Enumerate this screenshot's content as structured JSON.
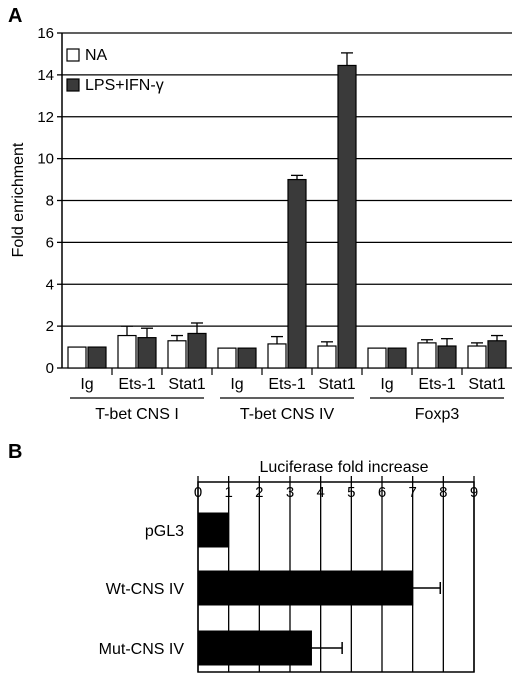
{
  "chart_data": [
    {
      "type": "bar",
      "panel_label": "A",
      "ylabel": "Fold enrichment",
      "ylim": [
        0,
        16
      ],
      "yticks": [
        0,
        2,
        4,
        6,
        8,
        10,
        12,
        14,
        16
      ],
      "grid": true,
      "legend_position": "top-left",
      "groups": [
        {
          "name": "T-bet CNS I",
          "categories": [
            "Ig",
            "Ets-1",
            "Stat1"
          ]
        },
        {
          "name": "T-bet CNS IV",
          "categories": [
            "Ig",
            "Ets-1",
            "Stat1"
          ]
        },
        {
          "name": "Foxp3",
          "categories": [
            "Ig",
            "Ets-1",
            "Stat1"
          ]
        }
      ],
      "series": [
        {
          "name": "NA",
          "color": "#ffffff",
          "values": [
            1.0,
            1.55,
            1.3,
            0.95,
            1.15,
            1.05,
            0.95,
            1.2,
            1.05
          ],
          "errors": [
            0,
            0.45,
            0.25,
            0,
            0.35,
            0.2,
            0,
            0.15,
            0.15
          ]
        },
        {
          "name": "LPS+IFN-γ",
          "color": "#3a3a3a",
          "values": [
            1.0,
            1.45,
            1.65,
            0.95,
            9.0,
            14.45,
            0.95,
            1.05,
            1.3
          ],
          "errors": [
            0,
            0.45,
            0.5,
            0,
            0.2,
            0.6,
            0,
            0.35,
            0.25
          ]
        }
      ]
    },
    {
      "type": "bar",
      "orientation": "horizontal",
      "panel_label": "B",
      "xlabel": "Luciferase fold increase",
      "xlim": [
        0,
        9
      ],
      "xticks": [
        0,
        1,
        2,
        3,
        4,
        5,
        6,
        7,
        8,
        9
      ],
      "grid": true,
      "categories": [
        "pGL3",
        "Wt-CNS IV",
        "Mut-CNS IV"
      ],
      "values": [
        1.0,
        7.0,
        3.7
      ],
      "errors": [
        0,
        0.9,
        1.0
      ],
      "color": "#000000"
    }
  ]
}
